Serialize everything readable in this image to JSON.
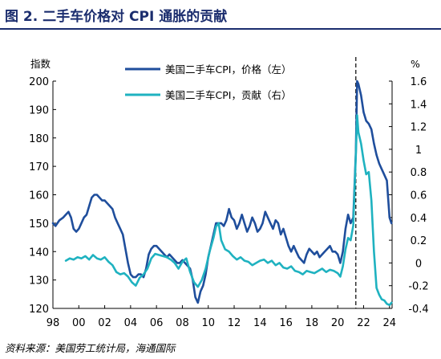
{
  "figure": {
    "title": "图 2. 二手车价格对 CPI 通胀的贡献",
    "source": "资料来源：美国劳工统计局，海通国际"
  },
  "chart_data": {
    "type": "line",
    "left_unit": "指数",
    "right_unit": "%",
    "y_left": {
      "lim": [
        120,
        200
      ],
      "ticks": [
        "120",
        "130",
        "140",
        "150",
        "160",
        "170",
        "180",
        "190",
        "200"
      ]
    },
    "y_right": {
      "lim": [
        -0.4,
        1.6
      ],
      "ticks": [
        "-0.4",
        "-0.2",
        "0",
        "0.2",
        "0.4",
        "0.6",
        "0.8",
        "1",
        "1.2",
        "1.4",
        "1.6"
      ]
    },
    "x_range": [
      1998,
      2024.2
    ],
    "x_ticks": [
      {
        "label": "98",
        "x": 1998
      },
      {
        "label": "00",
        "x": 2000
      },
      {
        "label": "02",
        "x": 2002
      },
      {
        "label": "04",
        "x": 2004
      },
      {
        "label": "06",
        "x": 2006
      },
      {
        "label": "08",
        "x": 2008
      },
      {
        "label": "10",
        "x": 2010
      },
      {
        "label": "12",
        "x": 2012
      },
      {
        "label": "14",
        "x": 2014
      },
      {
        "label": "16",
        "x": 2016
      },
      {
        "label": "18",
        "x": 2018
      },
      {
        "label": "20",
        "x": 2020
      },
      {
        "label": "22",
        "x": 2022
      },
      {
        "label": "24",
        "x": 2024
      }
    ],
    "vline_x": 2021.4,
    "grid": false,
    "legend_position": "top-center",
    "series": [
      {
        "name": "美国二手车CPI，价格（左）",
        "axis": "left",
        "color": "#1f4e9c",
        "points": [
          [
            1998.0,
            150
          ],
          [
            1998.2,
            149
          ],
          [
            1998.5,
            151
          ],
          [
            1998.8,
            152
          ],
          [
            1999.0,
            153
          ],
          [
            1999.2,
            154
          ],
          [
            1999.4,
            152
          ],
          [
            1999.6,
            148
          ],
          [
            1999.8,
            147
          ],
          [
            2000.0,
            148
          ],
          [
            2000.2,
            150
          ],
          [
            2000.4,
            152
          ],
          [
            2000.6,
            153
          ],
          [
            2000.8,
            156
          ],
          [
            2001.0,
            159
          ],
          [
            2001.2,
            160
          ],
          [
            2001.4,
            160
          ],
          [
            2001.6,
            159
          ],
          [
            2001.8,
            158
          ],
          [
            2002.0,
            158
          ],
          [
            2002.2,
            157
          ],
          [
            2002.4,
            156
          ],
          [
            2002.6,
            155
          ],
          [
            2002.8,
            152
          ],
          [
            2003.0,
            150
          ],
          [
            2003.2,
            148
          ],
          [
            2003.4,
            146
          ],
          [
            2003.6,
            141
          ],
          [
            2003.8,
            136
          ],
          [
            2004.0,
            132
          ],
          [
            2004.2,
            131
          ],
          [
            2004.4,
            131
          ],
          [
            2004.6,
            132
          ],
          [
            2004.8,
            132
          ],
          [
            2005.0,
            131
          ],
          [
            2005.2,
            134
          ],
          [
            2005.4,
            139
          ],
          [
            2005.6,
            141
          ],
          [
            2005.8,
            142
          ],
          [
            2006.0,
            142
          ],
          [
            2006.2,
            141
          ],
          [
            2006.4,
            140
          ],
          [
            2006.6,
            139
          ],
          [
            2006.8,
            138
          ],
          [
            2007.0,
            139
          ],
          [
            2007.2,
            138
          ],
          [
            2007.4,
            137
          ],
          [
            2007.6,
            136
          ],
          [
            2007.8,
            136
          ],
          [
            2008.0,
            137
          ],
          [
            2008.2,
            136
          ],
          [
            2008.4,
            135
          ],
          [
            2008.6,
            134
          ],
          [
            2008.8,
            130
          ],
          [
            2009.0,
            124
          ],
          [
            2009.2,
            122
          ],
          [
            2009.4,
            126
          ],
          [
            2009.6,
            128
          ],
          [
            2009.8,
            132
          ],
          [
            2010.0,
            138
          ],
          [
            2010.2,
            142
          ],
          [
            2010.4,
            146
          ],
          [
            2010.6,
            150
          ],
          [
            2010.8,
            150
          ],
          [
            2011.0,
            150
          ],
          [
            2011.2,
            149
          ],
          [
            2011.4,
            151
          ],
          [
            2011.6,
            155
          ],
          [
            2011.8,
            152
          ],
          [
            2012.0,
            151
          ],
          [
            2012.2,
            148
          ],
          [
            2012.4,
            150
          ],
          [
            2012.6,
            153
          ],
          [
            2012.8,
            150
          ],
          [
            2013.0,
            147
          ],
          [
            2013.2,
            149
          ],
          [
            2013.4,
            152
          ],
          [
            2013.6,
            150
          ],
          [
            2013.8,
            147
          ],
          [
            2014.0,
            148
          ],
          [
            2014.2,
            150
          ],
          [
            2014.4,
            154
          ],
          [
            2014.6,
            152
          ],
          [
            2014.8,
            150
          ],
          [
            2015.0,
            148
          ],
          [
            2015.2,
            151
          ],
          [
            2015.4,
            150
          ],
          [
            2015.6,
            146
          ],
          [
            2015.8,
            148
          ],
          [
            2016.0,
            145
          ],
          [
            2016.2,
            142
          ],
          [
            2016.4,
            140
          ],
          [
            2016.6,
            142
          ],
          [
            2016.8,
            140
          ],
          [
            2017.0,
            138
          ],
          [
            2017.2,
            137
          ],
          [
            2017.4,
            136
          ],
          [
            2017.6,
            139
          ],
          [
            2017.8,
            141
          ],
          [
            2018.0,
            140
          ],
          [
            2018.2,
            139
          ],
          [
            2018.4,
            140
          ],
          [
            2018.6,
            138
          ],
          [
            2018.8,
            139
          ],
          [
            2019.0,
            140
          ],
          [
            2019.2,
            141
          ],
          [
            2019.4,
            142
          ],
          [
            2019.6,
            140
          ],
          [
            2019.8,
            140
          ],
          [
            2020.0,
            139
          ],
          [
            2020.2,
            136
          ],
          [
            2020.4,
            140
          ],
          [
            2020.6,
            148
          ],
          [
            2020.8,
            153
          ],
          [
            2021.0,
            150
          ],
          [
            2021.2,
            152
          ],
          [
            2021.4,
            175
          ],
          [
            2021.5,
            200
          ],
          [
            2021.6,
            199
          ],
          [
            2021.8,
            195
          ],
          [
            2022.0,
            189
          ],
          [
            2022.2,
            186
          ],
          [
            2022.4,
            185
          ],
          [
            2022.6,
            183
          ],
          [
            2022.8,
            178
          ],
          [
            2023.0,
            174
          ],
          [
            2023.2,
            171
          ],
          [
            2023.4,
            169
          ],
          [
            2023.6,
            167
          ],
          [
            2023.8,
            165
          ],
          [
            2024.0,
            152
          ],
          [
            2024.15,
            150
          ]
        ]
      },
      {
        "name": "美国二手车CPI，贡献（右）",
        "axis": "right",
        "color": "#1fb2c0",
        "points": [
          [
            1999.0,
            0.02
          ],
          [
            1999.3,
            0.04
          ],
          [
            1999.6,
            0.03
          ],
          [
            1999.9,
            0.05
          ],
          [
            2000.2,
            0.04
          ],
          [
            2000.5,
            0.06
          ],
          [
            2000.8,
            0.03
          ],
          [
            2001.1,
            0.07
          ],
          [
            2001.4,
            0.04
          ],
          [
            2001.7,
            0.03
          ],
          [
            2002.0,
            0.05
          ],
          [
            2002.3,
            0.01
          ],
          [
            2002.6,
            -0.02
          ],
          [
            2002.9,
            -0.08
          ],
          [
            2003.2,
            -0.1
          ],
          [
            2003.5,
            -0.09
          ],
          [
            2003.8,
            -0.12
          ],
          [
            2004.1,
            -0.17
          ],
          [
            2004.4,
            -0.2
          ],
          [
            2004.7,
            -0.13
          ],
          [
            2005.0,
            -0.1
          ],
          [
            2005.3,
            -0.05
          ],
          [
            2005.6,
            0.04
          ],
          [
            2005.9,
            0.08
          ],
          [
            2006.2,
            0.07
          ],
          [
            2006.5,
            0.06
          ],
          [
            2006.8,
            0.05
          ],
          [
            2007.1,
            0.03
          ],
          [
            2007.4,
            0.0
          ],
          [
            2007.7,
            -0.05
          ],
          [
            2008.0,
            0.01
          ],
          [
            2008.3,
            0.04
          ],
          [
            2008.6,
            -0.08
          ],
          [
            2008.9,
            -0.17
          ],
          [
            2009.2,
            -0.21
          ],
          [
            2009.5,
            -0.15
          ],
          [
            2009.8,
            -0.05
          ],
          [
            2010.1,
            0.1
          ],
          [
            2010.4,
            0.22
          ],
          [
            2010.6,
            0.32
          ],
          [
            2010.8,
            0.35
          ],
          [
            2011.0,
            0.2
          ],
          [
            2011.3,
            0.12
          ],
          [
            2011.6,
            0.1
          ],
          [
            2011.9,
            0.06
          ],
          [
            2012.2,
            0.03
          ],
          [
            2012.5,
            0.05
          ],
          [
            2012.8,
            0.02
          ],
          [
            2013.1,
            0.01
          ],
          [
            2013.4,
            -0.02
          ],
          [
            2013.7,
            0.0
          ],
          [
            2014.0,
            0.02
          ],
          [
            2014.3,
            0.03
          ],
          [
            2014.6,
            0.0
          ],
          [
            2014.9,
            0.02
          ],
          [
            2015.2,
            -0.02
          ],
          [
            2015.5,
            0.0
          ],
          [
            2015.8,
            -0.04
          ],
          [
            2016.1,
            -0.05
          ],
          [
            2016.4,
            -0.03
          ],
          [
            2016.7,
            -0.07
          ],
          [
            2017.0,
            -0.08
          ],
          [
            2017.3,
            -0.1
          ],
          [
            2017.6,
            -0.07
          ],
          [
            2017.9,
            -0.08
          ],
          [
            2018.2,
            -0.09
          ],
          [
            2018.5,
            -0.07
          ],
          [
            2018.8,
            -0.05
          ],
          [
            2019.1,
            -0.08
          ],
          [
            2019.4,
            -0.06
          ],
          [
            2019.7,
            -0.07
          ],
          [
            2020.0,
            -0.09
          ],
          [
            2020.2,
            -0.12
          ],
          [
            2020.4,
            -0.03
          ],
          [
            2020.6,
            0.12
          ],
          [
            2020.8,
            0.22
          ],
          [
            2021.0,
            0.2
          ],
          [
            2021.2,
            0.33
          ],
          [
            2021.4,
            0.95
          ],
          [
            2021.5,
            1.3
          ],
          [
            2021.6,
            1.15
          ],
          [
            2021.8,
            1.05
          ],
          [
            2022.0,
            0.9
          ],
          [
            2022.2,
            0.78
          ],
          [
            2022.4,
            0.8
          ],
          [
            2022.6,
            0.55
          ],
          [
            2022.8,
            0.1
          ],
          [
            2023.0,
            -0.22
          ],
          [
            2023.2,
            -0.28
          ],
          [
            2023.4,
            -0.32
          ],
          [
            2023.6,
            -0.33
          ],
          [
            2023.8,
            -0.36
          ],
          [
            2024.0,
            -0.37
          ],
          [
            2024.15,
            -0.35
          ]
        ]
      }
    ]
  }
}
